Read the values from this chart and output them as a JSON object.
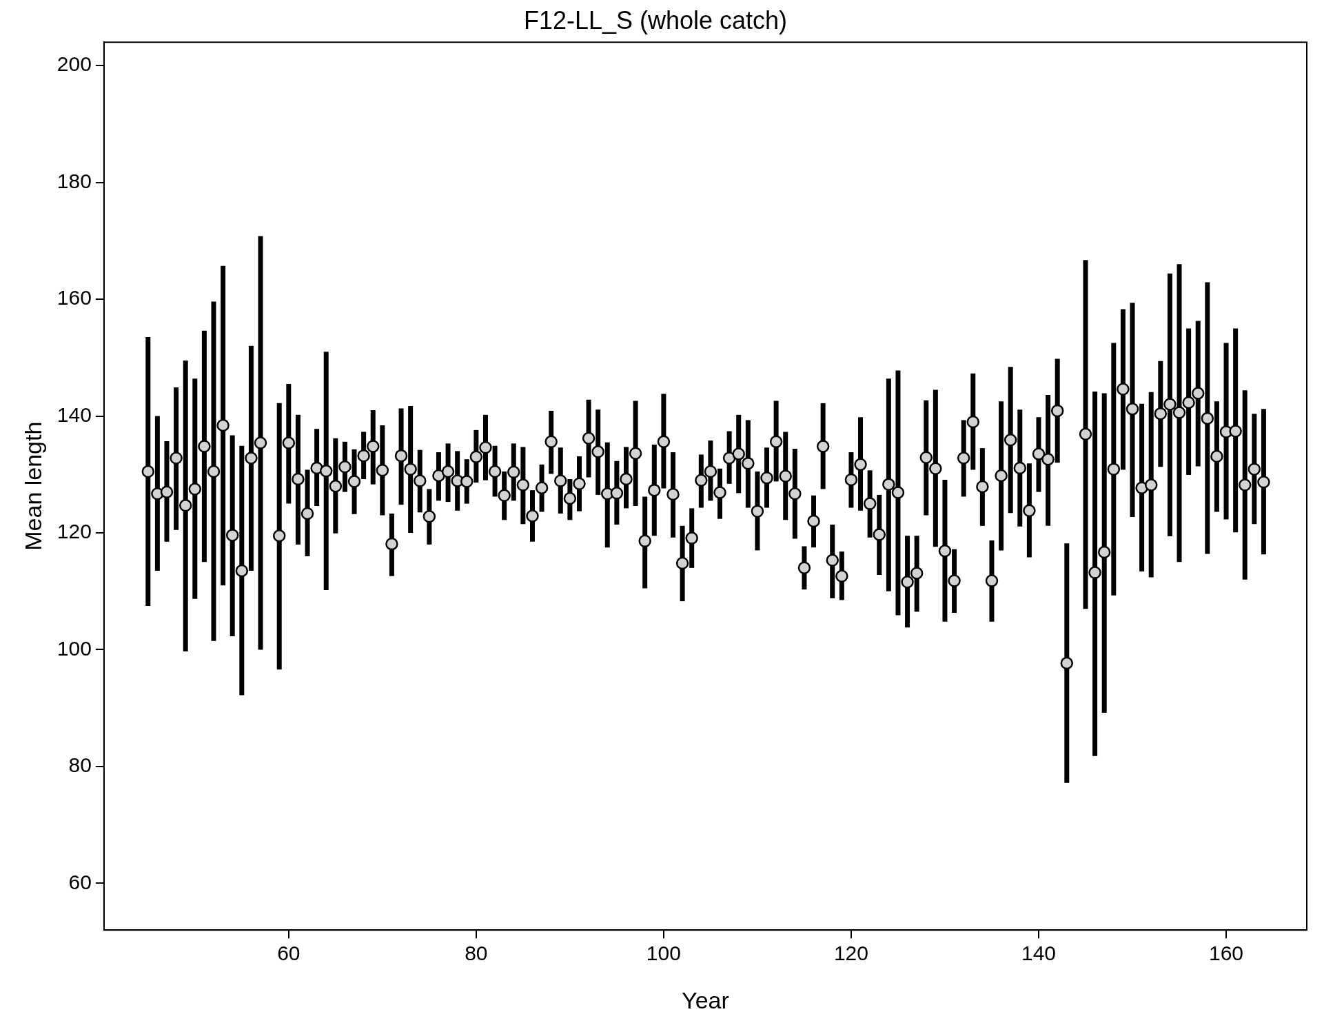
{
  "chart_data": {
    "type": "scatter",
    "title": "F12-LL_S (whole catch)",
    "xlabel": "Year",
    "ylabel": "Mean length",
    "x": [
      45,
      46,
      47,
      48,
      49,
      50,
      51,
      52,
      53,
      54,
      55,
      56,
      57,
      59,
      60,
      61,
      62,
      63,
      64,
      65,
      66,
      67,
      68,
      69,
      70,
      71,
      72,
      73,
      74,
      75,
      76,
      77,
      78,
      79,
      80,
      81,
      82,
      83,
      84,
      85,
      86,
      87,
      88,
      89,
      90,
      91,
      92,
      93,
      94,
      95,
      96,
      97,
      98,
      99,
      100,
      101,
      102,
      103,
      104,
      105,
      106,
      107,
      108,
      109,
      110,
      111,
      112,
      113,
      114,
      115,
      116,
      117,
      118,
      119,
      120,
      121,
      122,
      123,
      124,
      125,
      126,
      127,
      128,
      129,
      130,
      131,
      132,
      133,
      134,
      135,
      136,
      137,
      138,
      139,
      140,
      141,
      142,
      143,
      145,
      146,
      147,
      148,
      149,
      150,
      151,
      152,
      153,
      154,
      155,
      156,
      157,
      158,
      159,
      160,
      161,
      162,
      163,
      164
    ],
    "series": [
      {
        "color": "#d3d3d3",
        "values": [
          130.5,
          126.7,
          127,
          132.8,
          124.7,
          127.5,
          134.8,
          130.5,
          138.4,
          119.6,
          113.5,
          132.8,
          135.4,
          119.5,
          135.4,
          129.2,
          123.3,
          131.1,
          130.6,
          128,
          131.3,
          128.8,
          133.2,
          134.8,
          130.7,
          118.1,
          133.2,
          130.9,
          128.9,
          122.8,
          129.8,
          130.5,
          128.9,
          128.8,
          133,
          134.6,
          130.5,
          126.4,
          130.4,
          128.2,
          122.9,
          127.7,
          135.6,
          128.9,
          125.9,
          128.4,
          136.2,
          133.9,
          126.7,
          126.8,
          129.2,
          133.6,
          118.6,
          127.3,
          135.6,
          126.6,
          114.8,
          119.1,
          129,
          130.5,
          126.9,
          132.8,
          133.5,
          131.9,
          123.7,
          129.4,
          135.6,
          129.7,
          126.7,
          114,
          122,
          134.8,
          115.3,
          112.6,
          129.1,
          131.7,
          125,
          119.7,
          128.3,
          126.9,
          111.6,
          113.1,
          132.9,
          131,
          116.9,
          111.8,
          132.8,
          139,
          127.9,
          111.8,
          129.8,
          135.9,
          131.1,
          123.8,
          133.5,
          132.6,
          140.9,
          97.7,
          136.9,
          113.2,
          116.7,
          130.9,
          144.6,
          141.2,
          127.7,
          128.2,
          140.4,
          142,
          140.6,
          142.3,
          143.9,
          139.6,
          133.1,
          137.3,
          137.4,
          128.2,
          130.9,
          128.7
        ],
        "errors": [
          [
            107.5,
            153.5
          ],
          [
            113.5,
            140
          ],
          [
            118.5,
            135.7
          ],
          [
            120.5,
            144.9
          ],
          [
            99.7,
            149.5
          ],
          [
            108.7,
            146.4
          ],
          [
            115,
            154.6
          ],
          [
            101.5,
            159.6
          ],
          [
            111,
            165.7
          ],
          [
            102.3,
            136.7
          ],
          [
            92.2,
            134.9
          ],
          [
            113.5,
            152
          ],
          [
            100,
            170.8
          ],
          [
            96.6,
            142.2
          ],
          [
            125,
            145.5
          ],
          [
            118,
            140.2
          ],
          [
            116,
            130.8
          ],
          [
            124.6,
            137.8
          ],
          [
            110.2,
            151
          ],
          [
            119.9,
            136.2
          ],
          [
            127,
            135.6
          ],
          [
            123.2,
            134.3
          ],
          [
            129.2,
            137.3
          ],
          [
            128.3,
            141
          ],
          [
            123,
            138.4
          ],
          [
            112.6,
            123.3
          ],
          [
            124.8,
            141.3
          ],
          [
            120,
            141.7
          ],
          [
            123.5,
            134.2
          ],
          [
            118,
            127.5
          ],
          [
            125.5,
            133.8
          ],
          [
            125.3,
            135.3
          ],
          [
            123.8,
            134
          ],
          [
            125,
            132.6
          ],
          [
            128.6,
            137.6
          ],
          [
            129,
            140.2
          ],
          [
            126.2,
            134.9
          ],
          [
            122.2,
            130.5
          ],
          [
            125.5,
            135.3
          ],
          [
            121.5,
            134.7
          ],
          [
            118.5,
            127.3
          ],
          [
            123.6,
            131.7
          ],
          [
            130.1,
            140.9
          ],
          [
            123.3,
            134.6
          ],
          [
            122.2,
            129.2
          ],
          [
            123.7,
            133.1
          ],
          [
            129.5,
            142.8
          ],
          [
            126.5,
            141.1
          ],
          [
            117.5,
            135.5
          ],
          [
            121.4,
            132.3
          ],
          [
            124.2,
            134.7
          ],
          [
            124.6,
            142.6
          ],
          [
            110.5,
            126.2
          ],
          [
            119.5,
            135.1
          ],
          [
            127.6,
            143.8
          ],
          [
            119.2,
            133.8
          ],
          [
            108.3,
            121.2
          ],
          [
            114,
            124.2
          ],
          [
            124.3,
            133.4
          ],
          [
            125.5,
            135.8
          ],
          [
            122.4,
            131
          ],
          [
            128.4,
            137.4
          ],
          [
            126.8,
            140.2
          ],
          [
            124.3,
            139.3
          ],
          [
            117,
            130.5
          ],
          [
            124.3,
            134.6
          ],
          [
            128.8,
            142.6
          ],
          [
            122.2,
            137.3
          ],
          [
            119,
            134.4
          ],
          [
            110.3,
            117.7
          ],
          [
            117.5,
            126.4
          ],
          [
            127.5,
            142.2
          ],
          [
            108.8,
            121.4
          ],
          [
            108.5,
            116.8
          ],
          [
            124.3,
            133.8
          ],
          [
            123.8,
            139.8
          ],
          [
            119.2,
            130.7
          ],
          [
            112.8,
            126.5
          ],
          [
            110,
            146.4
          ],
          [
            105.9,
            147.8
          ],
          [
            103.8,
            119.5
          ],
          [
            106.5,
            119.5
          ],
          [
            123,
            142.7
          ],
          [
            117.6,
            144.5
          ],
          [
            104.8,
            129.1
          ],
          [
            106.3,
            117.2
          ],
          [
            126.2,
            139.3
          ],
          [
            130.8,
            147.3
          ],
          [
            121.2,
            134.5
          ],
          [
            104.8,
            118.7
          ],
          [
            117,
            142.5
          ],
          [
            123.4,
            148.4
          ],
          [
            121.1,
            141.1
          ],
          [
            115.8,
            131.9
          ],
          [
            127,
            139.8
          ],
          [
            121.2,
            143.6
          ],
          [
            132,
            149.8
          ],
          [
            77.2,
            118.2
          ],
          [
            107,
            166.7
          ],
          [
            81.8,
            144.2
          ],
          [
            89.2,
            143.9
          ],
          [
            109.3,
            152.5
          ],
          [
            130.8,
            158.3
          ],
          [
            122.7,
            159.4
          ],
          [
            113.4,
            142.1
          ],
          [
            112.4,
            144.1
          ],
          [
            131.3,
            149.4
          ],
          [
            119.4,
            164.4
          ],
          [
            115,
            166
          ],
          [
            129.9,
            155
          ],
          [
            131.4,
            156.3
          ],
          [
            116.4,
            162.9
          ],
          [
            123.6,
            142.5
          ],
          [
            122.3,
            152.5
          ],
          [
            120.1,
            155
          ],
          [
            112,
            144.4
          ],
          [
            121.5,
            140.4
          ],
          [
            116.3,
            141.2
          ]
        ]
      }
    ],
    "xlim": [
      40.3,
      168.6
    ],
    "xticks": [
      60,
      80,
      100,
      120,
      140,
      160
    ],
    "ylim": [
      52,
      204
    ],
    "yticks": [
      60,
      80,
      100,
      120,
      140,
      160,
      180,
      200
    ],
    "marker": "circle",
    "legend": false
  }
}
